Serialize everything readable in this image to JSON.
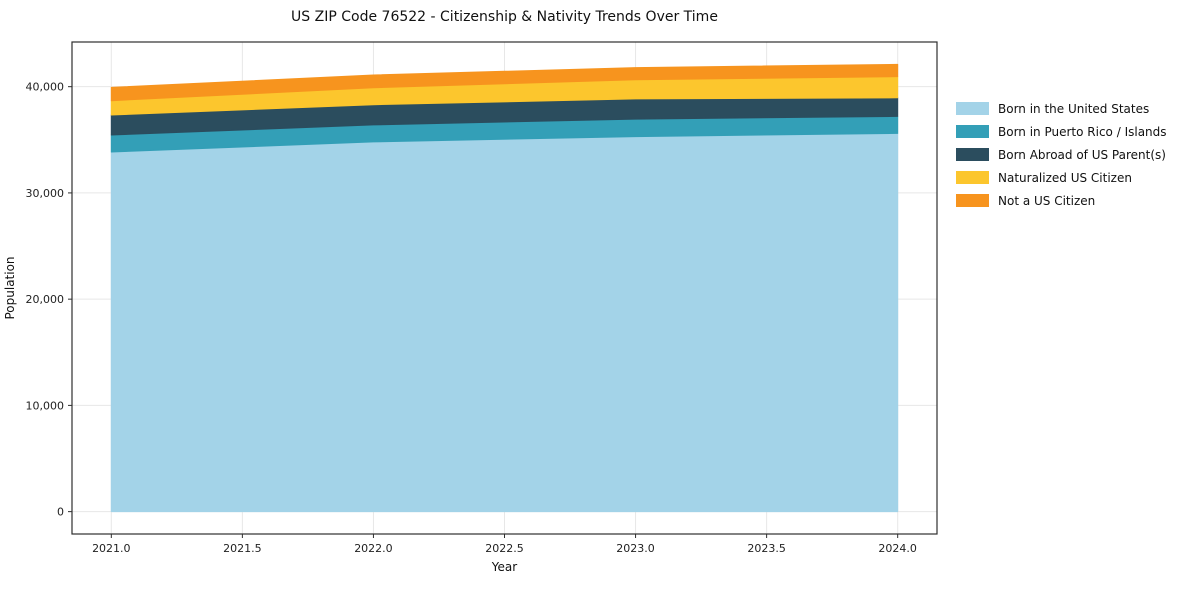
{
  "chart_data": {
    "type": "area",
    "stacked": true,
    "title": "US ZIP Code 76522 - Citizenship & Nativity Trends Over Time",
    "xlabel": "Year",
    "ylabel": "Population",
    "x": [
      2021,
      2022,
      2023,
      2024
    ],
    "series": [
      {
        "name": "Born in the United States",
        "color": "#a3d3e8",
        "values": [
          33850,
          34800,
          35300,
          35600
        ]
      },
      {
        "name": "Born in Puerto Rico / Islands",
        "color": "#339fb7",
        "values": [
          1600,
          1600,
          1650,
          1600
        ]
      },
      {
        "name": "Born Abroad of US Parent(s)",
        "color": "#2b4d5e",
        "values": [
          1880,
          1900,
          1900,
          1750
        ]
      },
      {
        "name": "Naturalized US Citizen",
        "color": "#fcc62d",
        "values": [
          1350,
          1600,
          1800,
          2000
        ]
      },
      {
        "name": "Not a US Citizen",
        "color": "#f7941e",
        "values": [
          1250,
          1200,
          1150,
          1150
        ]
      }
    ],
    "xlim": [
      2020.85,
      2024.15
    ],
    "ylim": [
      -2105,
      44205
    ],
    "xticks": {
      "values": [
        2021,
        2021.5,
        2022,
        2022.5,
        2023,
        2023.5,
        2024
      ],
      "labels": [
        "2021.0",
        "2021.5",
        "2022.0",
        "2022.5",
        "2023.0",
        "2023.5",
        "2024.0"
      ]
    },
    "yticks": {
      "values": [
        0,
        10000,
        20000,
        30000,
        40000
      ],
      "labels": [
        "0",
        "10,000",
        "20,000",
        "30,000",
        "40,000"
      ]
    },
    "grid": true,
    "legend_position": "center-right"
  },
  "colors": {
    "grid": "#e7e7e7",
    "spine": "#2e2e2e",
    "tick_text": "#222222",
    "background": "#ffffff"
  }
}
